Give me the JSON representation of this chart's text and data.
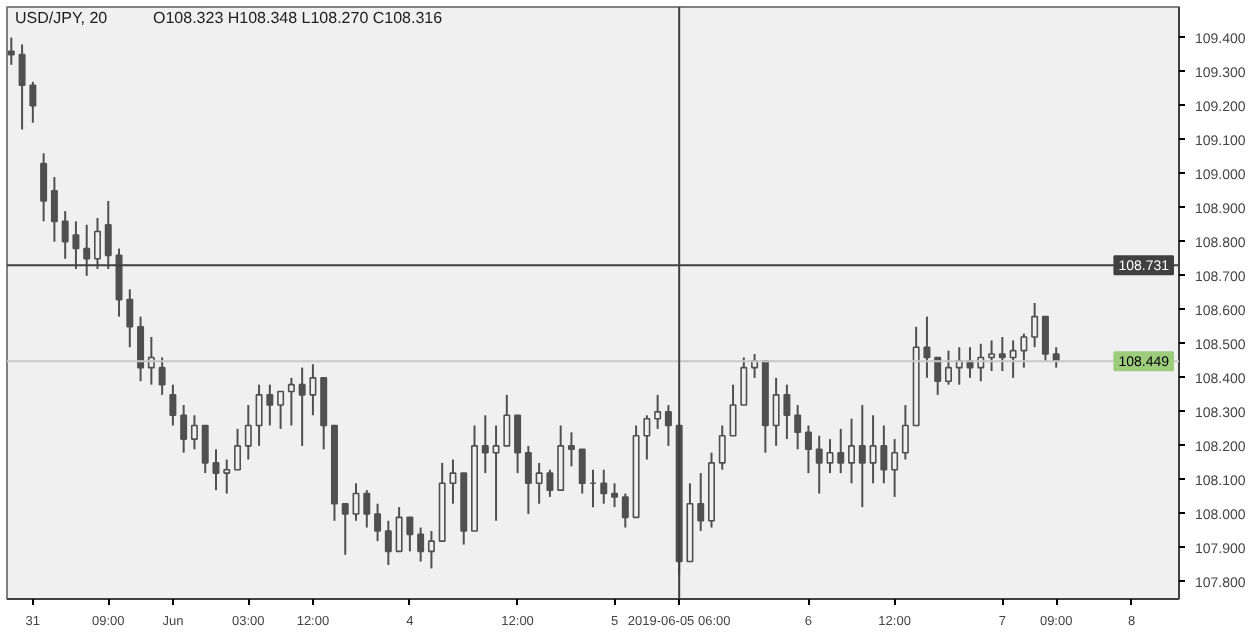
{
  "chart_data": {
    "type": "candlestick",
    "title": "USD/JPY, 20",
    "annotations": [
      "O108.323 H108.348 L108.270 C108.316"
    ],
    "color": "#505050",
    "categories": [
      null,
      null,
      "31",
      null,
      null,
      null,
      null,
      null,
      null,
      "09:00",
      null,
      null,
      null,
      null,
      null,
      "Jun",
      null,
      null,
      null,
      null,
      null,
      null,
      "03:00",
      null,
      null,
      null,
      null,
      null,
      "12:00",
      null,
      null,
      null,
      null,
      null,
      null,
      null,
      null,
      "4",
      null,
      null,
      null,
      null,
      null,
      null,
      null,
      null,
      null,
      "12:00",
      null,
      null,
      null,
      null,
      null,
      null,
      null,
      null,
      "5",
      null,
      null,
      null,
      null,
      null,
      "2019-06-05 06:00",
      null,
      null,
      null,
      null,
      null,
      null,
      null,
      null,
      null,
      null,
      null,
      "6",
      null,
      null,
      null,
      null,
      null,
      null,
      null,
      "12:00",
      null,
      null,
      null,
      null,
      null,
      null,
      null,
      null,
      null,
      "7",
      null,
      null,
      null,
      null,
      "09:00",
      null,
      null,
      null,
      null,
      null,
      null,
      "8",
      null,
      null,
      null,
      null
    ],
    "ohlc": [
      [
        109.36,
        109.4,
        109.32,
        109.35
      ],
      [
        109.35,
        109.38,
        109.13,
        109.26
      ],
      [
        109.26,
        109.27,
        109.15,
        109.2
      ],
      [
        109.03,
        109.06,
        108.86,
        108.92
      ],
      [
        108.95,
        108.99,
        108.8,
        108.86
      ],
      [
        108.86,
        108.89,
        108.75,
        108.8
      ],
      [
        108.82,
        108.86,
        108.72,
        108.78
      ],
      [
        108.78,
        108.85,
        108.7,
        108.75
      ],
      [
        108.75,
        108.87,
        108.72,
        108.83
      ],
      [
        108.85,
        108.92,
        108.72,
        108.76
      ],
      [
        108.76,
        108.78,
        108.58,
        108.63
      ],
      [
        108.63,
        108.66,
        108.49,
        108.55
      ],
      [
        108.55,
        108.58,
        108.39,
        108.43
      ],
      [
        108.43,
        108.52,
        108.38,
        108.46
      ],
      [
        108.43,
        108.46,
        108.35,
        108.38
      ],
      [
        108.35,
        108.38,
        108.26,
        108.29
      ],
      [
        108.29,
        108.32,
        108.18,
        108.22
      ],
      [
        108.22,
        108.29,
        108.19,
        108.26
      ],
      [
        108.26,
        108.26,
        108.12,
        108.15
      ],
      [
        108.15,
        108.19,
        108.07,
        108.12
      ],
      [
        108.12,
        108.16,
        108.06,
        108.13
      ],
      [
        108.13,
        108.25,
        108.13,
        108.2
      ],
      [
        108.2,
        108.32,
        108.16,
        108.26
      ],
      [
        108.26,
        108.38,
        108.2,
        108.35
      ],
      [
        108.35,
        108.38,
        108.26,
        108.32
      ],
      [
        108.32,
        108.36,
        108.25,
        108.36
      ],
      [
        108.36,
        108.4,
        108.26,
        108.38
      ],
      [
        108.38,
        108.43,
        108.2,
        108.35
      ],
      [
        108.35,
        108.44,
        108.29,
        108.4
      ],
      [
        108.4,
        108.4,
        108.19,
        108.26
      ],
      [
        108.26,
        108.26,
        107.98,
        108.03
      ],
      [
        108.03,
        108.03,
        107.88,
        108.0
      ],
      [
        108.0,
        108.09,
        107.98,
        108.06
      ],
      [
        108.06,
        108.07,
        107.96,
        108.0
      ],
      [
        108.0,
        108.03,
        107.92,
        107.95
      ],
      [
        107.95,
        107.98,
        107.85,
        107.89
      ],
      [
        107.89,
        108.02,
        107.89,
        107.99
      ],
      [
        107.99,
        107.99,
        107.89,
        107.94
      ],
      [
        107.94,
        107.96,
        107.86,
        107.89
      ],
      [
        107.89,
        107.95,
        107.84,
        107.92
      ],
      [
        107.92,
        108.15,
        107.92,
        108.09
      ],
      [
        108.09,
        108.16,
        108.03,
        108.12
      ],
      [
        108.12,
        108.12,
        107.91,
        107.95
      ],
      [
        107.95,
        108.26,
        107.95,
        108.2
      ],
      [
        108.2,
        108.29,
        108.12,
        108.18
      ],
      [
        108.18,
        108.26,
        107.98,
        108.2
      ],
      [
        108.2,
        108.35,
        108.2,
        108.29
      ],
      [
        108.29,
        108.29,
        108.12,
        108.18
      ],
      [
        108.18,
        108.2,
        108.0,
        108.09
      ],
      [
        108.09,
        108.15,
        108.03,
        108.12
      ],
      [
        108.12,
        108.13,
        108.05,
        108.07
      ],
      [
        108.07,
        108.26,
        108.07,
        108.2
      ],
      [
        108.2,
        108.24,
        108.14,
        108.19
      ],
      [
        108.19,
        108.19,
        108.06,
        108.09
      ],
      [
        108.09,
        108.13,
        108.02,
        108.09
      ],
      [
        108.09,
        108.13,
        108.03,
        108.06
      ],
      [
        108.06,
        108.09,
        108.02,
        108.05
      ],
      [
        108.05,
        108.06,
        107.96,
        107.99
      ],
      [
        107.99,
        108.26,
        107.99,
        108.23
      ],
      [
        108.23,
        108.29,
        108.16,
        108.28
      ],
      [
        108.28,
        108.35,
        108.25,
        108.3
      ],
      [
        108.3,
        108.32,
        108.2,
        108.26
      ],
      [
        108.26,
        108.26,
        107.82,
        107.86
      ],
      [
        107.86,
        108.09,
        107.86,
        108.03
      ],
      [
        108.03,
        108.12,
        107.95,
        107.98
      ],
      [
        107.98,
        108.18,
        107.96,
        108.15
      ],
      [
        108.15,
        108.26,
        108.13,
        108.23
      ],
      [
        108.23,
        108.38,
        108.23,
        108.32
      ],
      [
        108.32,
        108.46,
        108.32,
        108.43
      ],
      [
        108.43,
        108.47,
        108.4,
        108.45
      ],
      [
        108.45,
        108.45,
        108.18,
        108.26
      ],
      [
        108.26,
        108.4,
        108.2,
        108.35
      ],
      [
        108.35,
        108.38,
        108.22,
        108.29
      ],
      [
        108.29,
        108.32,
        108.19,
        108.24
      ],
      [
        108.24,
        108.26,
        108.12,
        108.19
      ],
      [
        108.19,
        108.23,
        108.06,
        108.15
      ],
      [
        108.15,
        108.22,
        108.12,
        108.18
      ],
      [
        108.18,
        108.25,
        108.12,
        108.15
      ],
      [
        108.15,
        108.28,
        108.09,
        108.2
      ],
      [
        108.2,
        108.32,
        108.02,
        108.15
      ],
      [
        108.15,
        108.29,
        108.09,
        108.2
      ],
      [
        108.2,
        108.26,
        108.09,
        108.13
      ],
      [
        108.13,
        108.22,
        108.05,
        108.18
      ],
      [
        108.18,
        108.32,
        108.16,
        108.26
      ],
      [
        108.26,
        108.55,
        108.26,
        108.49
      ],
      [
        108.49,
        108.58,
        108.4,
        108.46
      ],
      [
        108.46,
        108.46,
        108.35,
        108.39
      ],
      [
        108.39,
        108.48,
        108.38,
        108.43
      ],
      [
        108.43,
        108.49,
        108.38,
        108.45
      ],
      [
        108.45,
        108.49,
        108.4,
        108.43
      ],
      [
        108.43,
        108.5,
        108.39,
        108.46
      ],
      [
        108.46,
        108.51,
        108.42,
        108.47
      ],
      [
        108.47,
        108.52,
        108.42,
        108.46
      ],
      [
        108.46,
        108.51,
        108.4,
        108.48
      ],
      [
        108.48,
        108.53,
        108.43,
        108.52
      ],
      [
        108.52,
        108.62,
        108.49,
        108.58
      ],
      [
        108.58,
        108.58,
        108.45,
        108.47
      ],
      [
        108.47,
        108.49,
        108.43,
        108.45
      ],
      null,
      null,
      null,
      null,
      null,
      null,
      null,
      null,
      null,
      null,
      null
    ],
    "ylim": [
      107.75,
      109.49
    ],
    "yticks": [
      {
        "value": 107.8,
        "label": "107.800"
      },
      {
        "value": 107.9,
        "label": "107.900"
      },
      {
        "value": 108.0,
        "label": "108.000"
      },
      {
        "value": 108.1,
        "label": "108.100"
      },
      {
        "value": 108.2,
        "label": "108.200"
      },
      {
        "value": 108.3,
        "label": "108.300"
      },
      {
        "value": 108.4,
        "label": "108.400"
      },
      {
        "value": 108.5,
        "label": "108.500"
      },
      {
        "value": 108.6,
        "label": "108.600"
      },
      {
        "value": 108.7,
        "label": "108.700"
      },
      {
        "value": 108.8,
        "label": "108.800"
      },
      {
        "value": 108.9,
        "label": "108.900"
      },
      {
        "value": 109.0,
        "label": "109.000"
      },
      {
        "value": 109.1,
        "label": "109.100"
      },
      {
        "value": 109.2,
        "label": "109.200"
      },
      {
        "value": 109.3,
        "label": "109.300"
      },
      {
        "value": 109.4,
        "label": "109.400"
      }
    ],
    "ref_lines": [
      {
        "axis": "y",
        "value": 108.731,
        "label": "108.731",
        "color": "#404040"
      },
      {
        "axis": "y",
        "value": 108.449,
        "label": "108.449",
        "color": "#c8c8c8"
      },
      {
        "axis": "x",
        "value": "2019-06-05 06:00",
        "color": "#404040"
      }
    ]
  }
}
